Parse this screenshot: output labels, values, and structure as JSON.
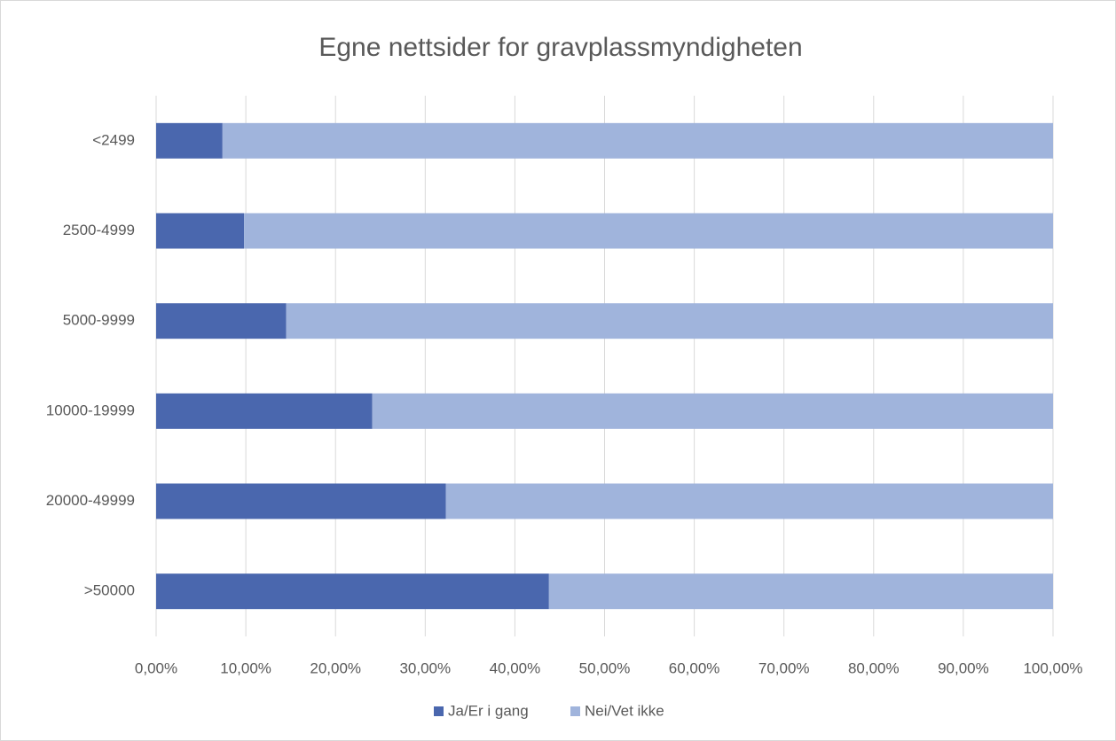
{
  "chart_data": {
    "type": "stacked_barh",
    "title": "Egne nettsider for gravplassmyndigheten",
    "categories": [
      "<2499",
      "2500-4999",
      "5000-9999",
      "10000-19999",
      "20000-49999",
      ">50000"
    ],
    "series": [
      {
        "name": "Ja/Er i gang",
        "color": "#4a67ae",
        "values": [
          7.4,
          9.8,
          14.5,
          24.1,
          32.3,
          43.8
        ]
      },
      {
        "name": "Nei/Vet ikke",
        "color": "#a0b4dc",
        "values": [
          92.6,
          90.2,
          85.5,
          75.9,
          67.7,
          56.2
        ]
      }
    ],
    "xlim": [
      0,
      100
    ],
    "xticks": [
      {
        "value": 0,
        "label": "0,00%"
      },
      {
        "value": 10,
        "label": "10,00%"
      },
      {
        "value": 20,
        "label": "20,00%"
      },
      {
        "value": 30,
        "label": "30,00%"
      },
      {
        "value": 40,
        "label": "40,00%"
      },
      {
        "value": 50,
        "label": "50,00%"
      },
      {
        "value": 60,
        "label": "60,00%"
      },
      {
        "value": 70,
        "label": "70,00%"
      },
      {
        "value": 80,
        "label": "80,00%"
      },
      {
        "value": 90,
        "label": "90,00%"
      },
      {
        "value": 100,
        "label": "100,00%"
      }
    ],
    "grid": true,
    "legend": "bottom"
  }
}
